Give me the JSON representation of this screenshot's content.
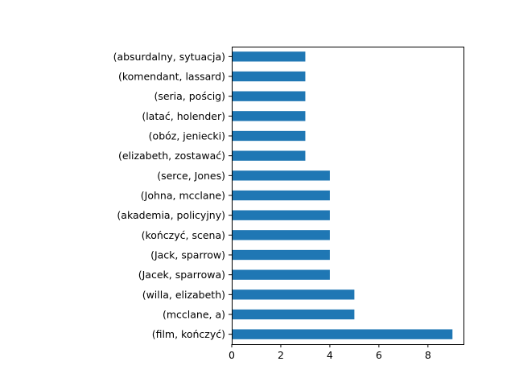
{
  "chart_data": {
    "type": "bar",
    "orientation": "horizontal",
    "categories": [
      "(film, kończyć)",
      "(mcclane, a)",
      "(willa, elizabeth)",
      "(Jacek, sparrowa)",
      "(Jack, sparrow)",
      "(kończyć, scena)",
      "(akademia, policyjny)",
      "(Johna, mcclane)",
      "(serce, Jones)",
      "(elizabeth, zostawać)",
      "(obóz, jeniecki)",
      "(latać, holender)",
      "(seria, pościg)",
      "(komendant, lassard)",
      "(absurdalny, sytuacja)"
    ],
    "values": [
      9,
      5,
      5,
      4,
      4,
      4,
      4,
      4,
      4,
      3,
      3,
      3,
      3,
      3,
      3
    ],
    "xlim": [
      0,
      9.45
    ],
    "xticks": [
      "0",
      "2",
      "4",
      "6",
      "8"
    ],
    "xtick_values": [
      0,
      2,
      4,
      6,
      8
    ],
    "bar_color": "#1f77b4",
    "grid": false,
    "legend": false,
    "title": "",
    "xlabel": "",
    "ylabel": ""
  }
}
